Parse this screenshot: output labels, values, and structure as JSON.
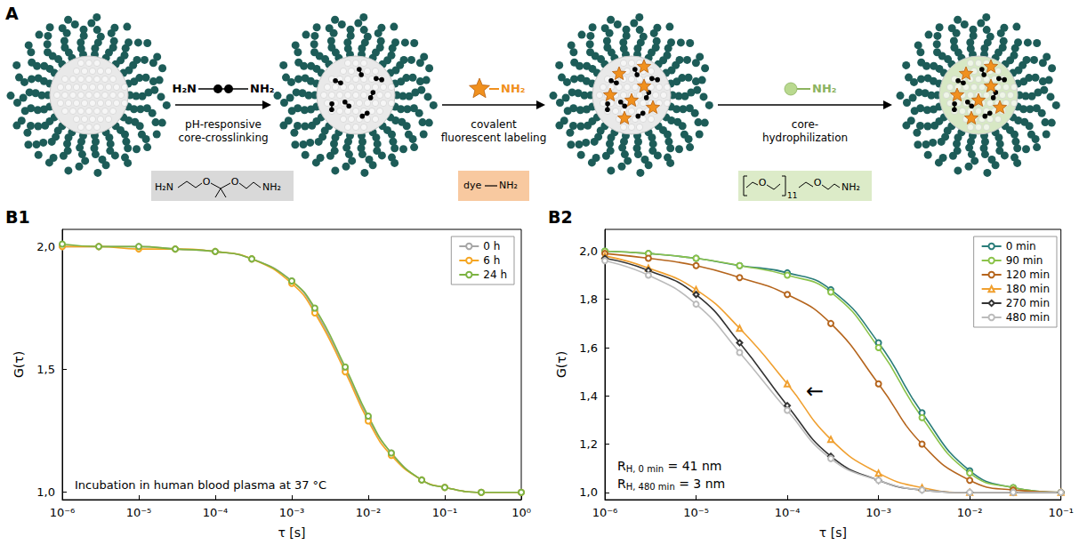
{
  "diagram": {
    "letter": "A",
    "steps": [
      {
        "reagent": [
          "H₂N",
          "NH₂"
        ],
        "label": [
          "pH-responsive",
          "core-crosslinking"
        ],
        "box": {
          "color": "#d9d9d9",
          "parts": [
            "H₂N",
            "O",
            "O",
            "NH₂"
          ]
        }
      },
      {
        "reagent": [
          "NH₂"
        ],
        "label": [
          "covalent",
          "fluorescent labeling"
        ],
        "box": {
          "color": "#f8c9a0",
          "parts": [
            "dye",
            "NH₂"
          ]
        }
      },
      {
        "reagent": [
          "NH₂"
        ],
        "label": [
          "core-",
          "hydrophilization"
        ],
        "box": {
          "color": "#dcebc8",
          "parts": [
            "O",
            "O",
            "11",
            "NH₂"
          ]
        }
      }
    ]
  },
  "chart_data": [
    {
      "panel": "B1",
      "type": "line",
      "x_label": "τ [s]",
      "y_label": "G(τ)",
      "log": "x",
      "grid": false,
      "legend": "top-right",
      "xlim": [
        1e-06,
        1
      ],
      "xticks": [
        {
          "value": 1e-06,
          "label": "10⁻⁶"
        },
        {
          "value": 1e-05,
          "label": "10⁻⁵"
        },
        {
          "value": 0.0001,
          "label": "10⁻⁴"
        },
        {
          "value": 0.001,
          "label": "10⁻³"
        },
        {
          "value": 0.01,
          "label": "10⁻²"
        },
        {
          "value": 0.1,
          "label": "10⁻¹"
        },
        {
          "value": 1,
          "label": "10⁰"
        }
      ],
      "ylim": [
        0.97,
        2.07
      ],
      "yticks": [
        {
          "value": 1,
          "label": "1,0"
        },
        {
          "value": 1.5,
          "label": "1,5"
        },
        {
          "value": 2,
          "label": "2,0"
        }
      ],
      "x": [
        1e-06,
        3e-06,
        1e-05,
        3e-05,
        0.0001,
        0.0003,
        0.001,
        0.002,
        0.005,
        0.01,
        0.02,
        0.05,
        0.1,
        0.3,
        1
      ],
      "series": [
        {
          "name": "0 h",
          "color": "#a6a6a6",
          "marker": "circle",
          "values": [
            2.0,
            2.0,
            2.0,
            1.99,
            1.98,
            1.95,
            1.86,
            1.74,
            1.5,
            1.3,
            1.16,
            1.05,
            1.02,
            1.0,
            1.0
          ]
        },
        {
          "name": "6 h",
          "color": "#f5a623",
          "marker": "circle",
          "values": [
            2.0,
            2.0,
            1.99,
            1.99,
            1.98,
            1.95,
            1.85,
            1.73,
            1.49,
            1.29,
            1.15,
            1.05,
            1.02,
            1.0,
            1.0
          ]
        },
        {
          "name": "24 h",
          "color": "#7cb342",
          "marker": "circle",
          "values": [
            2.01,
            2.0,
            2.0,
            1.99,
            1.98,
            1.95,
            1.86,
            1.75,
            1.51,
            1.31,
            1.16,
            1.05,
            1.02,
            1.0,
            1.0
          ]
        }
      ],
      "annotations": [
        {
          "text": "Incubation in human blood plasma at 37 °C"
        }
      ]
    },
    {
      "panel": "B2",
      "type": "line",
      "x_label": "τ [s]",
      "y_label": "G(τ)",
      "log": "x",
      "grid": false,
      "legend": "top-right",
      "xlim": [
        1e-06,
        0.1
      ],
      "xticks": [
        {
          "value": 1e-06,
          "label": "10⁻⁶"
        },
        {
          "value": 1e-05,
          "label": "10⁻⁵"
        },
        {
          "value": 0.0001,
          "label": "10⁻⁴"
        },
        {
          "value": 0.001,
          "label": "10⁻³"
        },
        {
          "value": 0.01,
          "label": "10⁻²"
        },
        {
          "value": 0.1,
          "label": "10⁻¹"
        }
      ],
      "ylim": [
        0.97,
        2.09
      ],
      "yticks": [
        {
          "value": 1,
          "label": "1,0"
        },
        {
          "value": 1.2,
          "label": "1,2"
        },
        {
          "value": 1.4,
          "label": "1,4"
        },
        {
          "value": 1.6,
          "label": "1,6"
        },
        {
          "value": 1.8,
          "label": "1,8"
        },
        {
          "value": 2,
          "label": "2,0"
        }
      ],
      "x": [
        1e-06,
        3e-06,
        1e-05,
        3e-05,
        0.0001,
        0.0003,
        0.001,
        0.003,
        0.01,
        0.03,
        0.1
      ],
      "series": [
        {
          "name": "0 min",
          "color": "#2a7d7a",
          "marker": "circle",
          "values": [
            2.0,
            1.99,
            1.97,
            1.94,
            1.91,
            1.84,
            1.62,
            1.33,
            1.09,
            1.02,
            1.0
          ]
        },
        {
          "name": "90 min",
          "color": "#8bc34a",
          "marker": "circle",
          "values": [
            2.0,
            1.99,
            1.97,
            1.94,
            1.9,
            1.83,
            1.6,
            1.31,
            1.08,
            1.02,
            1.0
          ]
        },
        {
          "name": "120 min",
          "color": "#b5651d",
          "marker": "circle",
          "values": [
            1.99,
            1.97,
            1.94,
            1.89,
            1.82,
            1.7,
            1.45,
            1.2,
            1.05,
            1.01,
            1.0
          ]
        },
        {
          "name": "180 min",
          "color": "#f0a030",
          "marker": "triangle",
          "values": [
            1.98,
            1.93,
            1.84,
            1.68,
            1.45,
            1.22,
            1.08,
            1.02,
            1.0,
            1.0,
            1.0
          ]
        },
        {
          "name": "270 min",
          "color": "#333333",
          "marker": "diamond",
          "values": [
            1.97,
            1.92,
            1.82,
            1.62,
            1.36,
            1.15,
            1.05,
            1.01,
            1.0,
            1.0,
            1.0
          ]
        },
        {
          "name": "480 min",
          "color": "#bbbbbb",
          "marker": "circle",
          "values": [
            1.96,
            1.9,
            1.78,
            1.58,
            1.34,
            1.14,
            1.05,
            1.01,
            1.0,
            1.0,
            1.0
          ]
        }
      ],
      "annotations": [
        {
          "text": "←",
          "x": 0.0002,
          "y": 1.42
        },
        {
          "text": "R",
          "sub": "H, 0 min",
          "suffix": " = 41 nm"
        },
        {
          "text": "R",
          "sub": "H, 480 min",
          "suffix": " = 3 nm"
        }
      ]
    }
  ]
}
